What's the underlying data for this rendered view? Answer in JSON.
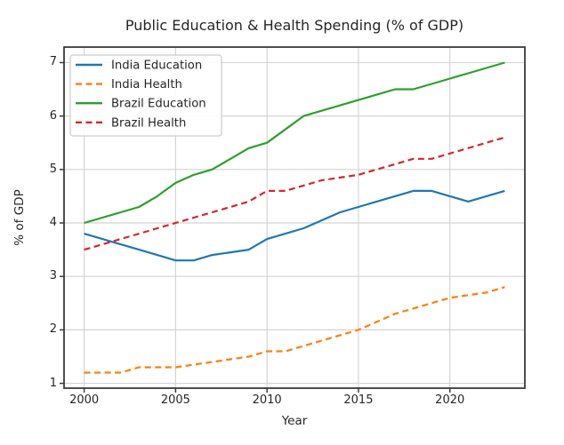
{
  "chart_data": {
    "type": "line",
    "title": "Public Education & Health Spending (% of GDP)",
    "xlabel": "Year",
    "ylabel": "% of GDP",
    "x": [
      2000,
      2001,
      2002,
      2003,
      2004,
      2005,
      2006,
      2007,
      2008,
      2009,
      2010,
      2011,
      2012,
      2013,
      2014,
      2015,
      2016,
      2017,
      2018,
      2019,
      2020,
      2021,
      2022,
      2023
    ],
    "xtick_labels": [
      "2000",
      "2005",
      "2010",
      "2015",
      "2020"
    ],
    "xtick_values": [
      2000,
      2005,
      2010,
      2015,
      2020
    ],
    "ytick_labels": [
      "1",
      "2",
      "3",
      "4",
      "5",
      "6",
      "7"
    ],
    "ytick_values": [
      1,
      2,
      3,
      4,
      5,
      6,
      7
    ],
    "xlim": [
      1998.9,
      2024.1
    ],
    "ylim": [
      0.91,
      7.29
    ],
    "grid": true,
    "legend_position": "upper-left",
    "series": [
      {
        "name": "India Education",
        "color": "#1f77b4",
        "style": "solid",
        "values": [
          3.8,
          3.7,
          3.6,
          3.5,
          3.4,
          3.3,
          3.3,
          3.4,
          3.45,
          3.5,
          3.7,
          3.8,
          3.9,
          4.05,
          4.2,
          4.3,
          4.4,
          4.5,
          4.6,
          4.6,
          4.5,
          4.4,
          4.5,
          4.6
        ]
      },
      {
        "name": "India Health",
        "color": "#ff7f0e",
        "style": "dashed",
        "values": [
          1.2,
          1.2,
          1.2,
          1.3,
          1.3,
          1.3,
          1.35,
          1.4,
          1.45,
          1.5,
          1.6,
          1.6,
          1.7,
          1.8,
          1.9,
          2.0,
          2.15,
          2.3,
          2.4,
          2.5,
          2.6,
          2.65,
          2.7,
          2.8
        ]
      },
      {
        "name": "Brazil Education",
        "color": "#2ca02c",
        "style": "solid",
        "values": [
          4.0,
          4.1,
          4.2,
          4.3,
          4.5,
          4.75,
          4.9,
          5.0,
          5.2,
          5.4,
          5.5,
          5.75,
          6.0,
          6.1,
          6.2,
          6.3,
          6.4,
          6.5,
          6.5,
          6.6,
          6.7,
          6.8,
          6.9,
          7.0
        ]
      },
      {
        "name": "Brazil Health",
        "color": "#d62728",
        "style": "dashed",
        "values": [
          3.5,
          3.6,
          3.7,
          3.8,
          3.9,
          4.0,
          4.1,
          4.2,
          4.3,
          4.4,
          4.6,
          4.6,
          4.7,
          4.8,
          4.85,
          4.9,
          5.0,
          5.1,
          5.2,
          5.2,
          5.3,
          5.4,
          5.5,
          5.6
        ]
      }
    ],
    "colors": {
      "background": "#ffffff",
      "spine": "#3a3a3a",
      "grid": "#d4d4d4",
      "text": "#262626",
      "legend_border": "#cccccc",
      "legend_background": "#ffffff"
    }
  }
}
